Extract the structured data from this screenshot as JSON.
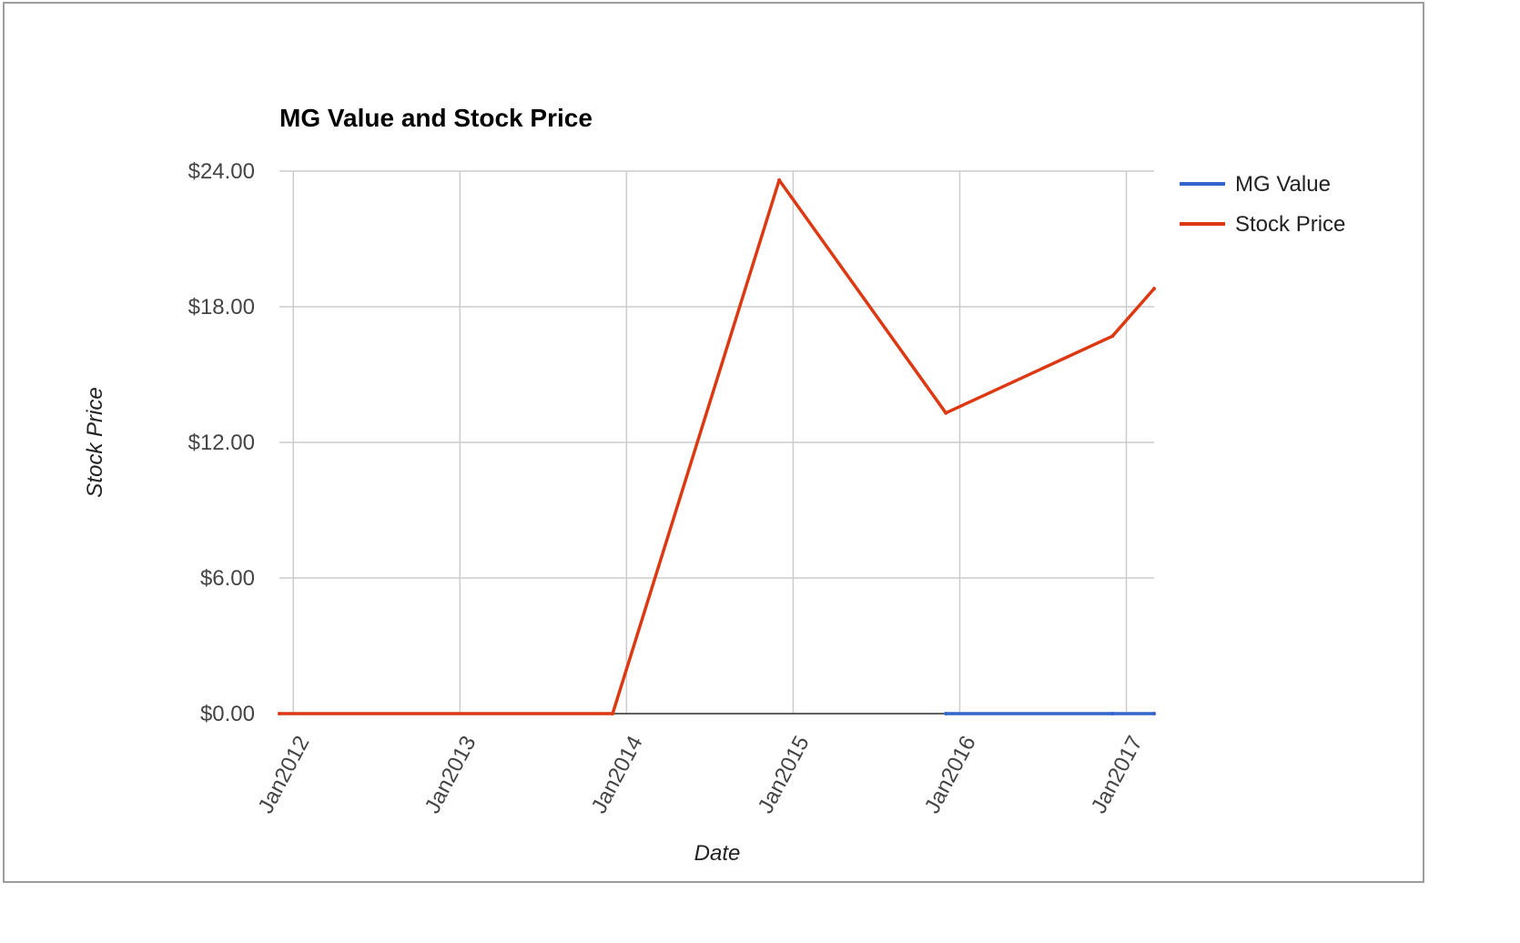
{
  "chart_data": {
    "type": "line",
    "title": "MG Value and Stock Price",
    "xlabel": "Date",
    "ylabel": "Stock Price",
    "x_ticks": [
      "Jan2012",
      "Jan2013",
      "Jan2014",
      "Jan2015",
      "Jan2016",
      "Jan2017"
    ],
    "y_ticks": [
      "$0.00",
      "$6.00",
      "$12.00",
      "$18.00",
      "$24.00"
    ],
    "ylim": [
      0,
      24
    ],
    "xlim": [
      "2011-12",
      "2017-03"
    ],
    "grid": true,
    "legend_position": "right",
    "series": [
      {
        "name": "MG Value",
        "color": "#3366cc",
        "points": [
          {
            "x": "2015-12",
            "y": 0
          },
          {
            "x": "2016-12",
            "y": 0
          },
          {
            "x": "2017-03",
            "y": 0
          }
        ]
      },
      {
        "name": "Stock Price",
        "color": "#dc3912",
        "points": [
          {
            "x": "2011-12",
            "y": 0
          },
          {
            "x": "2013-12",
            "y": 0
          },
          {
            "x": "2014-12",
            "y": 23.6
          },
          {
            "x": "2015-12",
            "y": 13.3
          },
          {
            "x": "2016-12",
            "y": 16.7
          },
          {
            "x": "2017-03",
            "y": 18.8
          }
        ]
      }
    ]
  }
}
